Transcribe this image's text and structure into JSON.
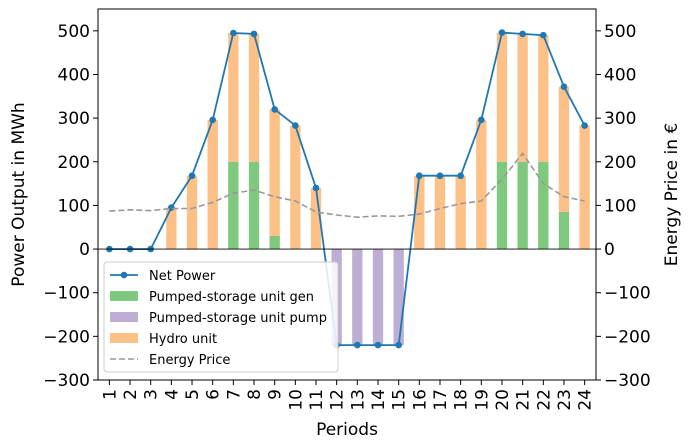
{
  "chart_data": {
    "type": "bar",
    "x": [
      "1",
      "2",
      "3",
      "4",
      "5",
      "6",
      "7",
      "8",
      "9",
      "10",
      "11",
      "12",
      "13",
      "14",
      "15",
      "16",
      "17",
      "18",
      "19",
      "20",
      "21",
      "22",
      "23",
      "24"
    ],
    "xlabel": "Periods",
    "ylabel": "Power Output in MWh",
    "y2label": "Energy Price in €",
    "ylim": [
      -300,
      550
    ],
    "y2lim": [
      -300,
      550
    ],
    "yticks": [
      -300,
      -200,
      -100,
      0,
      100,
      200,
      300,
      400,
      500
    ],
    "yticklabels": [
      "−300",
      "−200",
      "−100",
      "0",
      "100",
      "200",
      "300",
      "400",
      "500"
    ],
    "legend_position": "lower-left",
    "grid": false,
    "stacked_bars": true,
    "series": [
      {
        "name": "Pumped-storage unit gen",
        "kind": "bar",
        "color": "#7fc97f",
        "values": [
          0,
          0,
          0,
          0,
          0,
          0,
          200,
          200,
          30,
          0,
          0,
          0,
          0,
          0,
          0,
          0,
          0,
          0,
          0,
          200,
          200,
          200,
          85,
          0
        ]
      },
      {
        "name": "Pumped-storage unit pump",
        "kind": "bar",
        "color": "#beaed4",
        "values": [
          0,
          0,
          0,
          0,
          0,
          0,
          0,
          0,
          0,
          0,
          0,
          -220,
          -220,
          -220,
          -220,
          0,
          0,
          0,
          0,
          0,
          0,
          0,
          0,
          0
        ]
      },
      {
        "name": "Hydro unit",
        "kind": "bar",
        "color": "#fdc086",
        "values": [
          0,
          0,
          0,
          95,
          168,
          296,
          295,
          293,
          290,
          283,
          140,
          0,
          0,
          0,
          0,
          168,
          168,
          168,
          296,
          296,
          293,
          290,
          287,
          283
        ]
      },
      {
        "name": "Net Power",
        "kind": "line",
        "color": "#1f77b4",
        "values": [
          0,
          0,
          0,
          95,
          168,
          296,
          495,
          493,
          320,
          283,
          140,
          -220,
          -220,
          -220,
          -220,
          168,
          168,
          168,
          296,
          496,
          493,
          490,
          372,
          283
        ]
      },
      {
        "name": "Energy Price",
        "kind": "dashed-line",
        "axis": "right",
        "color": "#999999",
        "values": [
          87,
          90,
          88,
          93,
          93,
          107,
          128,
          135,
          120,
          110,
          85,
          78,
          73,
          76,
          75,
          80,
          93,
          104,
          110,
          160,
          219,
          150,
          120,
          110
        ]
      }
    ]
  }
}
